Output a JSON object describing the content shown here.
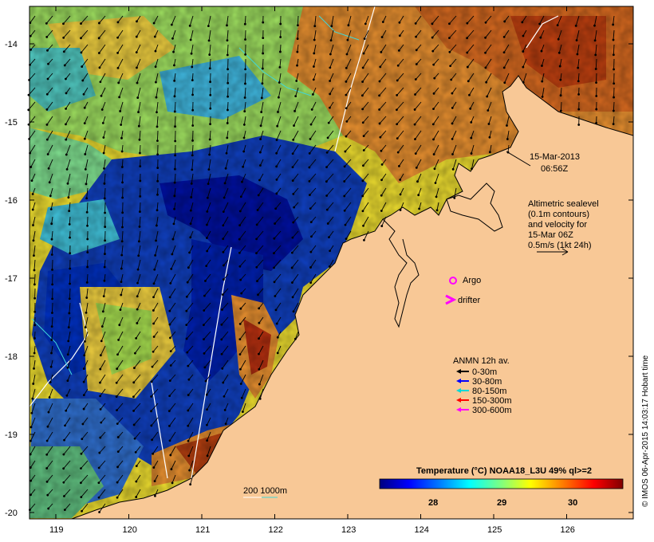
{
  "map": {
    "x_ticks": [
      "119",
      "120",
      "121",
      "122",
      "123",
      "124",
      "125",
      "126"
    ],
    "y_ticks": [
      "-14",
      "-15",
      "-16",
      "-17",
      "-18",
      "-19",
      "-20"
    ],
    "land_color": "#f8c896",
    "coast_color": "#000000"
  },
  "date_label": {
    "line1": "15-Mar-2013",
    "line2": "06:56Z"
  },
  "sealevel_note": {
    "line1": "Altimetric sealevel",
    "line2": "(0.1m contours)",
    "line3": "and velocity for",
    "line4": "15-Mar 06Z",
    "line5": "0.5m/s (1kt 24h)"
  },
  "legend_markers": {
    "argo": {
      "label": "Argo",
      "color": "#ff00ff"
    },
    "drifter": {
      "label": "drifter",
      "color": "#ff00ff"
    }
  },
  "anmn_legend": {
    "title": "ANMN 12h av.",
    "items": [
      {
        "label": "0-30m",
        "color": "#000000"
      },
      {
        "label": "30-80m",
        "color": "#0000ff"
      },
      {
        "label": "80-150m",
        "color": "#00d8d8"
      },
      {
        "label": "150-300m",
        "color": "#ff0000"
      },
      {
        "label": "300-600m",
        "color": "#ff00ff"
      }
    ]
  },
  "isobath_label": "200  1000m",
  "colorbar": {
    "title": "Temperature (°C) NOAA18_L3U 49% ql>=2",
    "ticks": [
      "28",
      "29",
      "30"
    ],
    "colors": [
      "#00007f",
      "#0000ff",
      "#007fff",
      "#00ffff",
      "#7fff7f",
      "#ffff00",
      "#ff7f00",
      "#ff0000",
      "#7f0000"
    ]
  },
  "credit": "© IMOS 06-Apr-2015 14:03:17 Hobart time"
}
